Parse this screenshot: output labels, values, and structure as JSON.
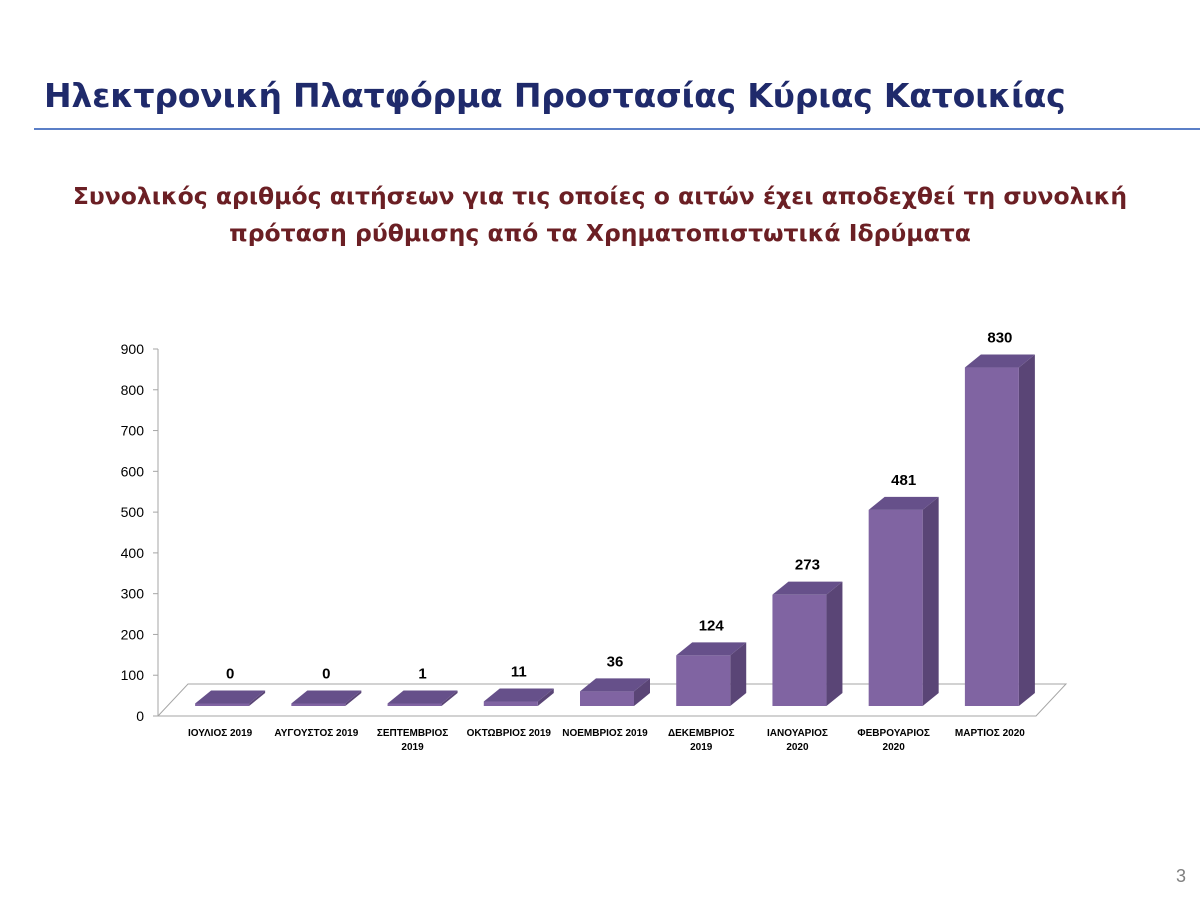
{
  "slide": {
    "title": "Ηλεκτρονική Πλατφόρμα Προστασίας Κύριας Κατοικίας",
    "page_number": "3"
  },
  "colors": {
    "title": "#1f2a6b",
    "chart_title": "#6b1f24",
    "rule": "#5b7fc7",
    "bar_front": "#8064a2",
    "bar_side": "#5a4576",
    "bar_top": "#66508a"
  },
  "chart_data": {
    "type": "bar",
    "title_lines": [
      "Συνολικός αριθμός αιτήσεων για τις οποίες ο αιτών έχει αποδεχθεί τη συνολική",
      "πρόταση ρύθμισης από τα Χρηματοπιστωτικά Ιδρύματα"
    ],
    "categories": [
      [
        "ΙΟΥΛΙΟΣ 2019"
      ],
      [
        "ΑΥΓΟΥΣΤΟΣ 2019"
      ],
      [
        "ΣΕΠΤΕΜΒΡΙΟΣ",
        "2019"
      ],
      [
        "ΟΚΤΩΒΡΙΟΣ 2019"
      ],
      [
        "ΝΟΕΜΒΡΙΟΣ 2019"
      ],
      [
        "ΔΕΚΕΜΒΡΙΟΣ",
        "2019"
      ],
      [
        "ΙΑΝΟΥΑΡΙΟΣ",
        "2020"
      ],
      [
        "ΦΕΒΡΟΥΑΡΙΟΣ",
        "2020"
      ],
      [
        "ΜΑΡΤΙΟΣ 2020"
      ]
    ],
    "values": [
      0,
      0,
      1,
      11,
      36,
      124,
      273,
      481,
      830
    ],
    "data_labels": [
      "0",
      "0",
      "1",
      "11",
      "36",
      "124",
      "273",
      "481",
      "830"
    ],
    "yticks": [
      "0",
      "100",
      "200",
      "300",
      "400",
      "500",
      "600",
      "700",
      "800",
      "900"
    ],
    "ylim": [
      0,
      900
    ],
    "grid": false,
    "legend": false,
    "style": "3d-column"
  }
}
